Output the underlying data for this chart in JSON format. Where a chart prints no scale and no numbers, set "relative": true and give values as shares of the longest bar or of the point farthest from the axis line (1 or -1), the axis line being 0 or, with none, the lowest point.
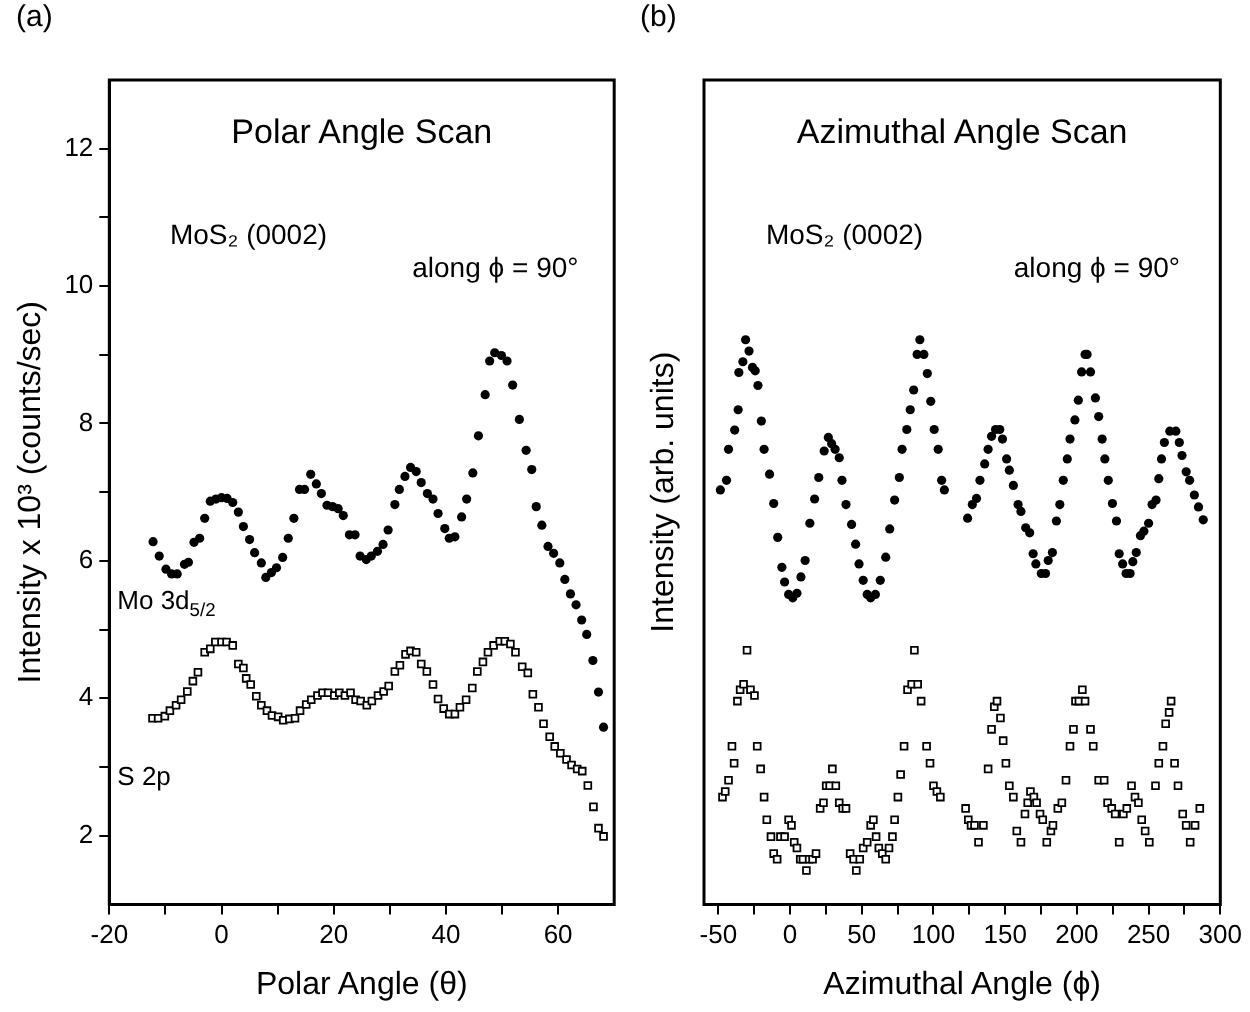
{
  "chart_data": [
    {
      "type": "scatter",
      "title": "Polar Angle Scan",
      "xlabel": "Polar Angle (θ)",
      "ylabel": "Intensity x 10³ (counts/sec)",
      "annotations": [
        "(a)",
        "MoS₂ (0002)",
        "along ϕ = 90°"
      ],
      "xlim": [
        -20,
        70
      ],
      "ylim": [
        1,
        13
      ],
      "xticks": [
        -20,
        {
          "value": -10,
          "label": null
        },
        0,
        {
          "value": 10,
          "label": null
        },
        20,
        {
          "value": 30,
          "label": null
        },
        40,
        {
          "value": 50,
          "label": null
        },
        60
      ],
      "yticks": [
        2,
        {
          "value": 3,
          "label": null
        },
        4,
        {
          "value": 5,
          "label": null
        },
        6,
        {
          "value": 7,
          "label": null
        },
        8,
        {
          "value": 9,
          "label": null
        },
        10,
        {
          "value": 11,
          "label": null
        },
        12
      ],
      "grid": false,
      "legend": false,
      "series": [
        {
          "name": "Mo 3d$_{5/2}$",
          "color": "#000000",
          "marker": "circle",
          "x": [
            -12.2,
            -11.1,
            -9.9,
            -8.9,
            -7.9,
            -6.6,
            -5.9,
            -4.9,
            -3.9,
            -3.0,
            -2.0,
            -1.0,
            0,
            1.0,
            2.0,
            3.0,
            3.9,
            5.0,
            5.9,
            7.1,
            7.9,
            8.9,
            9.8,
            10.9,
            11.9,
            12.9,
            13.9,
            14.8,
            15.9,
            16.9,
            17.8,
            18.8,
            19.8,
            20.8,
            21.7,
            22.8,
            23.8,
            24.7,
            25.8,
            26.7,
            27.8,
            28.8,
            29.7,
            30.9,
            31.7,
            32.7,
            33.7,
            34.7,
            35.6,
            36.7,
            37.7,
            38.6,
            39.8,
            40.6,
            41.6,
            42.8,
            43.7,
            44.8,
            45.8,
            47.0,
            47.8,
            48.7,
            49.9,
            50.9,
            51.9,
            53.1,
            54.3,
            55.3,
            56.1,
            57.1,
            58.2,
            59.2,
            60.3,
            61.2,
            62.2,
            63.2,
            64.2,
            65.1,
            66.2,
            67.2,
            68.1
          ],
          "values": [
            6.28,
            6.07,
            5.88,
            5.81,
            5.81,
            5.95,
            5.98,
            6.27,
            6.33,
            6.62,
            6.87,
            6.9,
            6.92,
            6.91,
            6.85,
            6.71,
            6.5,
            6.31,
            6.12,
            5.97,
            5.76,
            5.83,
            5.9,
            6.05,
            6.33,
            6.62,
            7.04,
            7.04,
            7.26,
            7.12,
            6.98,
            6.81,
            6.79,
            6.76,
            6.66,
            6.38,
            6.38,
            6.07,
            6.02,
            6.07,
            6.14,
            6.24,
            6.45,
            6.82,
            7.04,
            7.23,
            7.36,
            7.3,
            7.14,
            6.98,
            6.9,
            6.69,
            6.47,
            6.33,
            6.35,
            6.64,
            6.9,
            7.28,
            7.82,
            8.42,
            8.91,
            9.03,
            8.99,
            8.91,
            8.56,
            8.06,
            7.61,
            7.33,
            6.79,
            6.52,
            6.21,
            6.11,
            5.97,
            5.73,
            5.52,
            5.36,
            5.14,
            4.93,
            4.55,
            4.09,
            3.58
          ]
        },
        {
          "name": "S 2p",
          "color": "#000000",
          "marker": "square",
          "x": [
            -12.3,
            -11.3,
            -10.1,
            -9.2,
            -8.1,
            -7.2,
            -6.1,
            -5.1,
            -4.2,
            -3.0,
            -2.0,
            -1.1,
            0,
            0.9,
            2.0,
            3.0,
            3.9,
            4.4,
            5.2,
            6.2,
            7.1,
            8.1,
            9.0,
            10.1,
            11.0,
            12.1,
            13.1,
            14.0,
            15.1,
            16.0,
            17.1,
            18.0,
            19.0,
            20.1,
            21.0,
            22.0,
            23.0,
            23.9,
            24.8,
            25.9,
            26.8,
            27.9,
            28.9,
            29.8,
            30.9,
            31.8,
            32.8,
            33.7,
            34.7,
            35.6,
            36.6,
            37.7,
            38.6,
            39.6,
            40.6,
            41.6,
            42.5,
            43.6,
            44.7,
            45.6,
            46.6,
            47.5,
            48.5,
            49.6,
            50.5,
            51.5,
            52.4,
            53.6,
            54.6,
            55.5,
            56.5,
            57.4,
            58.5,
            59.4,
            60.4,
            61.5,
            62.4,
            63.4,
            64.3,
            65.3,
            66.3,
            67.2,
            68.1
          ],
          "values": [
            3.71,
            3.71,
            3.74,
            3.82,
            3.9,
            3.98,
            4.1,
            4.25,
            4.38,
            4.67,
            4.72,
            4.82,
            4.82,
            4.82,
            4.77,
            4.5,
            4.44,
            4.29,
            4.2,
            4.03,
            3.9,
            3.82,
            3.75,
            3.73,
            3.68,
            3.7,
            3.71,
            3.82,
            3.91,
            3.98,
            4.04,
            4.08,
            4.08,
            4.04,
            4.08,
            4.04,
            4.08,
            3.98,
            3.96,
            3.9,
            3.96,
            4.04,
            4.1,
            4.18,
            4.39,
            4.48,
            4.64,
            4.69,
            4.67,
            4.5,
            4.39,
            4.2,
            3.99,
            3.85,
            3.77,
            3.77,
            3.87,
            3.98,
            4.15,
            4.39,
            4.53,
            4.67,
            4.77,
            4.83,
            4.83,
            4.79,
            4.67,
            4.46,
            4.37,
            4.06,
            3.87,
            3.63,
            3.44,
            3.3,
            3.2,
            3.11,
            3.03,
            2.97,
            2.94,
            2.73,
            2.42,
            2.11,
            1.99
          ]
        }
      ]
    },
    {
      "type": "scatter",
      "title": "Azimuthal Angle Scan",
      "xlabel": "Azimuthal Angle (ϕ)",
      "ylabel": "Intensity (arb. units)",
      "annotations": [
        "(b)",
        "MoS₂ (0002)",
        "along ϕ = 90°"
      ],
      "relative": true,
      "xlim": [
        -60,
        300
      ],
      "xticks": [
        -50,
        {
          "value": -25,
          "label": null
        },
        0,
        {
          "value": 25,
          "label": null
        },
        50,
        {
          "value": 75,
          "label": null
        },
        100,
        {
          "value": 125,
          "label": null
        },
        150,
        {
          "value": 175,
          "label": null
        },
        200,
        {
          "value": 225,
          "label": null
        },
        250,
        {
          "value": 275,
          "label": null
        },
        300
      ],
      "grid": false,
      "legend": false,
      "series": [
        {
          "color": "#000000",
          "marker": "circle",
          "x": [
            -48.6,
            -44.3,
            -42.9,
            -38.6,
            -36.2,
            -35.7,
            -32.9,
            -31.0,
            -28.6,
            -26.2,
            -24.3,
            -22.4,
            -20.0,
            -18.1,
            -14.3,
            -11.4,
            -8.6,
            -5.7,
            -3.8,
            -1.0,
            1.9,
            4.8,
            7.6,
            10.5,
            13.8,
            17.1,
            20.0,
            23.8,
            26.7,
            29.0,
            31.4,
            34.3,
            36.2,
            39.0,
            42.9,
            45.7,
            48.1,
            51.0,
            53.8,
            56.2,
            59.5,
            62.9,
            66.7,
            69.5,
            72.9,
            76.2,
            78.1,
            81.4,
            83.8,
            86.2,
            88.6,
            90.5,
            93.3,
            95.7,
            98.1,
            100.5,
            103.3,
            105.7,
            107.6,
            123.8,
            127.1,
            130.0,
            132.4,
            135.7,
            138.1,
            140.5,
            143.3,
            146.2,
            148.1,
            151.0,
            152.9,
            155.7,
            159.0,
            161.0,
            164.3,
            167.1,
            169.5,
            171.4,
            175.2,
            178.1,
            180.0,
            182.9,
            185.7,
            188.1,
            190.5,
            193.3,
            195.2,
            198.6,
            201.0,
            203.3,
            205.7,
            207.1,
            209.5,
            212.9,
            215.2,
            217.6,
            219.5,
            221.9,
            224.8,
            227.6,
            229.5,
            231.9,
            234.3,
            237.1,
            239.0,
            241.4,
            244.3,
            246.7,
            250.0,
            252.4,
            255.2,
            257.1,
            259.0,
            261.0,
            264.8,
            269.0,
            271.4,
            273.3,
            276.2,
            278.6,
            281.9,
            284.8,
            288.1
          ],
          "values": [
            0.734,
            0.751,
            0.806,
            0.84,
            0.876,
            0.942,
            0.961,
            1.0,
            0.98,
            0.951,
            0.945,
            0.919,
            0.856,
            0.806,
            0.762,
            0.71,
            0.65,
            0.597,
            0.571,
            0.549,
            0.543,
            0.551,
            0.58,
            0.609,
            0.675,
            0.718,
            0.756,
            0.803,
            0.827,
            0.816,
            0.806,
            0.791,
            0.751,
            0.708,
            0.673,
            0.638,
            0.603,
            0.574,
            0.549,
            0.543,
            0.549,
            0.574,
            0.615,
            0.665,
            0.716,
            0.756,
            0.806,
            0.841,
            0.876,
            0.911,
            0.974,
            1.0,
            0.974,
            0.94,
            0.891,
            0.841,
            0.806,
            0.751,
            0.734,
            0.684,
            0.708,
            0.719,
            0.751,
            0.78,
            0.806,
            0.829,
            0.841,
            0.841,
            0.824,
            0.789,
            0.769,
            0.742,
            0.708,
            0.696,
            0.667,
            0.658,
            0.621,
            0.603,
            0.586,
            0.586,
            0.609,
            0.623,
            0.679,
            0.708,
            0.751,
            0.789,
            0.824,
            0.858,
            0.893,
            0.943,
            0.974,
            0.974,
            0.943,
            0.897,
            0.864,
            0.824,
            0.789,
            0.751,
            0.71,
            0.679,
            0.621,
            0.603,
            0.586,
            0.586,
            0.607,
            0.623,
            0.653,
            0.661,
            0.675,
            0.708,
            0.716,
            0.754,
            0.789,
            0.818,
            0.838,
            0.838,
            0.818,
            0.795,
            0.766,
            0.751,
            0.725,
            0.704,
            0.681
          ]
        },
        {
          "color": "#000000",
          "marker": "square",
          "x": [
            -47.1,
            -45.2,
            -42.9,
            -40.5,
            -39.0,
            -36.7,
            -34.8,
            -32.4,
            -30.0,
            -27.6,
            -24.8,
            -22.9,
            -20.5,
            -18.1,
            -16.2,
            -13.3,
            -11.4,
            -9.0,
            -6.7,
            -3.8,
            -1.0,
            1.0,
            2.9,
            4.8,
            7.1,
            9.0,
            11.4,
            13.3,
            15.7,
            18.1,
            21.0,
            23.3,
            25.2,
            27.6,
            29.5,
            31.9,
            34.3,
            36.7,
            39.0,
            41.9,
            44.3,
            46.2,
            48.6,
            51.0,
            53.8,
            56.2,
            58.1,
            60.0,
            61.9,
            64.3,
            66.7,
            69.0,
            71.4,
            72.9,
            75.2,
            77.1,
            79.5,
            81.9,
            84.8,
            86.7,
            89.0,
            91.4,
            95.2,
            97.6,
            100.0,
            102.4,
            104.8,
            122.4,
            124.3,
            126.2,
            128.6,
            131.4,
            134.8,
            138.1,
            140.5,
            142.4,
            144.3,
            146.7,
            148.6,
            150.5,
            152.9,
            155.7,
            158.1,
            161.0,
            163.8,
            165.7,
            167.6,
            170.0,
            171.9,
            174.3,
            176.2,
            179.0,
            181.9,
            183.3,
            186.7,
            189.5,
            192.4,
            195.2,
            197.6,
            199.0,
            201.4,
            203.8,
            205.7,
            209.5,
            211.4,
            215.2,
            219.0,
            221.4,
            224.3,
            226.7,
            229.5,
            232.4,
            234.8,
            238.1,
            240.5,
            242.9,
            245.2,
            247.6,
            250.5,
            254.8,
            257.1,
            260.0,
            261.9,
            264.3,
            265.7,
            268.1,
            270.5,
            273.8,
            276.2,
            279.0,
            282.4,
            285.7
          ],
          "values": [
            0.19,
            0.2,
            0.22,
            0.28,
            0.25,
            0.36,
            0.38,
            0.39,
            0.45,
            0.38,
            0.37,
            0.28,
            0.24,
            0.19,
            0.15,
            0.12,
            0.09,
            0.08,
            0.12,
            0.12,
            0.15,
            0.14,
            0.11,
            0.1,
            0.08,
            0.08,
            0.06,
            0.08,
            0.08,
            0.09,
            0.17,
            0.18,
            0.21,
            0.21,
            0.24,
            0.21,
            0.18,
            0.17,
            0.17,
            0.09,
            0.08,
            0.06,
            0.08,
            0.1,
            0.11,
            0.14,
            0.15,
            0.12,
            0.1,
            0.09,
            0.08,
            0.1,
            0.12,
            0.15,
            0.19,
            0.23,
            0.28,
            0.38,
            0.39,
            0.45,
            0.39,
            0.36,
            0.28,
            0.25,
            0.21,
            0.2,
            0.19,
            0.17,
            0.15,
            0.14,
            0.14,
            0.11,
            0.14,
            0.24,
            0.31,
            0.35,
            0.36,
            0.33,
            0.29,
            0.25,
            0.21,
            0.19,
            0.13,
            0.11,
            0.16,
            0.18,
            0.2,
            0.19,
            0.18,
            0.16,
            0.15,
            0.11,
            0.13,
            0.14,
            0.17,
            0.18,
            0.22,
            0.28,
            0.31,
            0.36,
            0.36,
            0.38,
            0.36,
            0.31,
            0.28,
            0.22,
            0.22,
            0.18,
            0.17,
            0.16,
            0.11,
            0.16,
            0.17,
            0.21,
            0.19,
            0.18,
            0.15,
            0.13,
            0.11,
            0.21,
            0.25,
            0.28,
            0.32,
            0.34,
            0.36,
            0.25,
            0.21,
            0.16,
            0.14,
            0.11,
            0.14,
            0.17
          ]
        }
      ]
    }
  ]
}
